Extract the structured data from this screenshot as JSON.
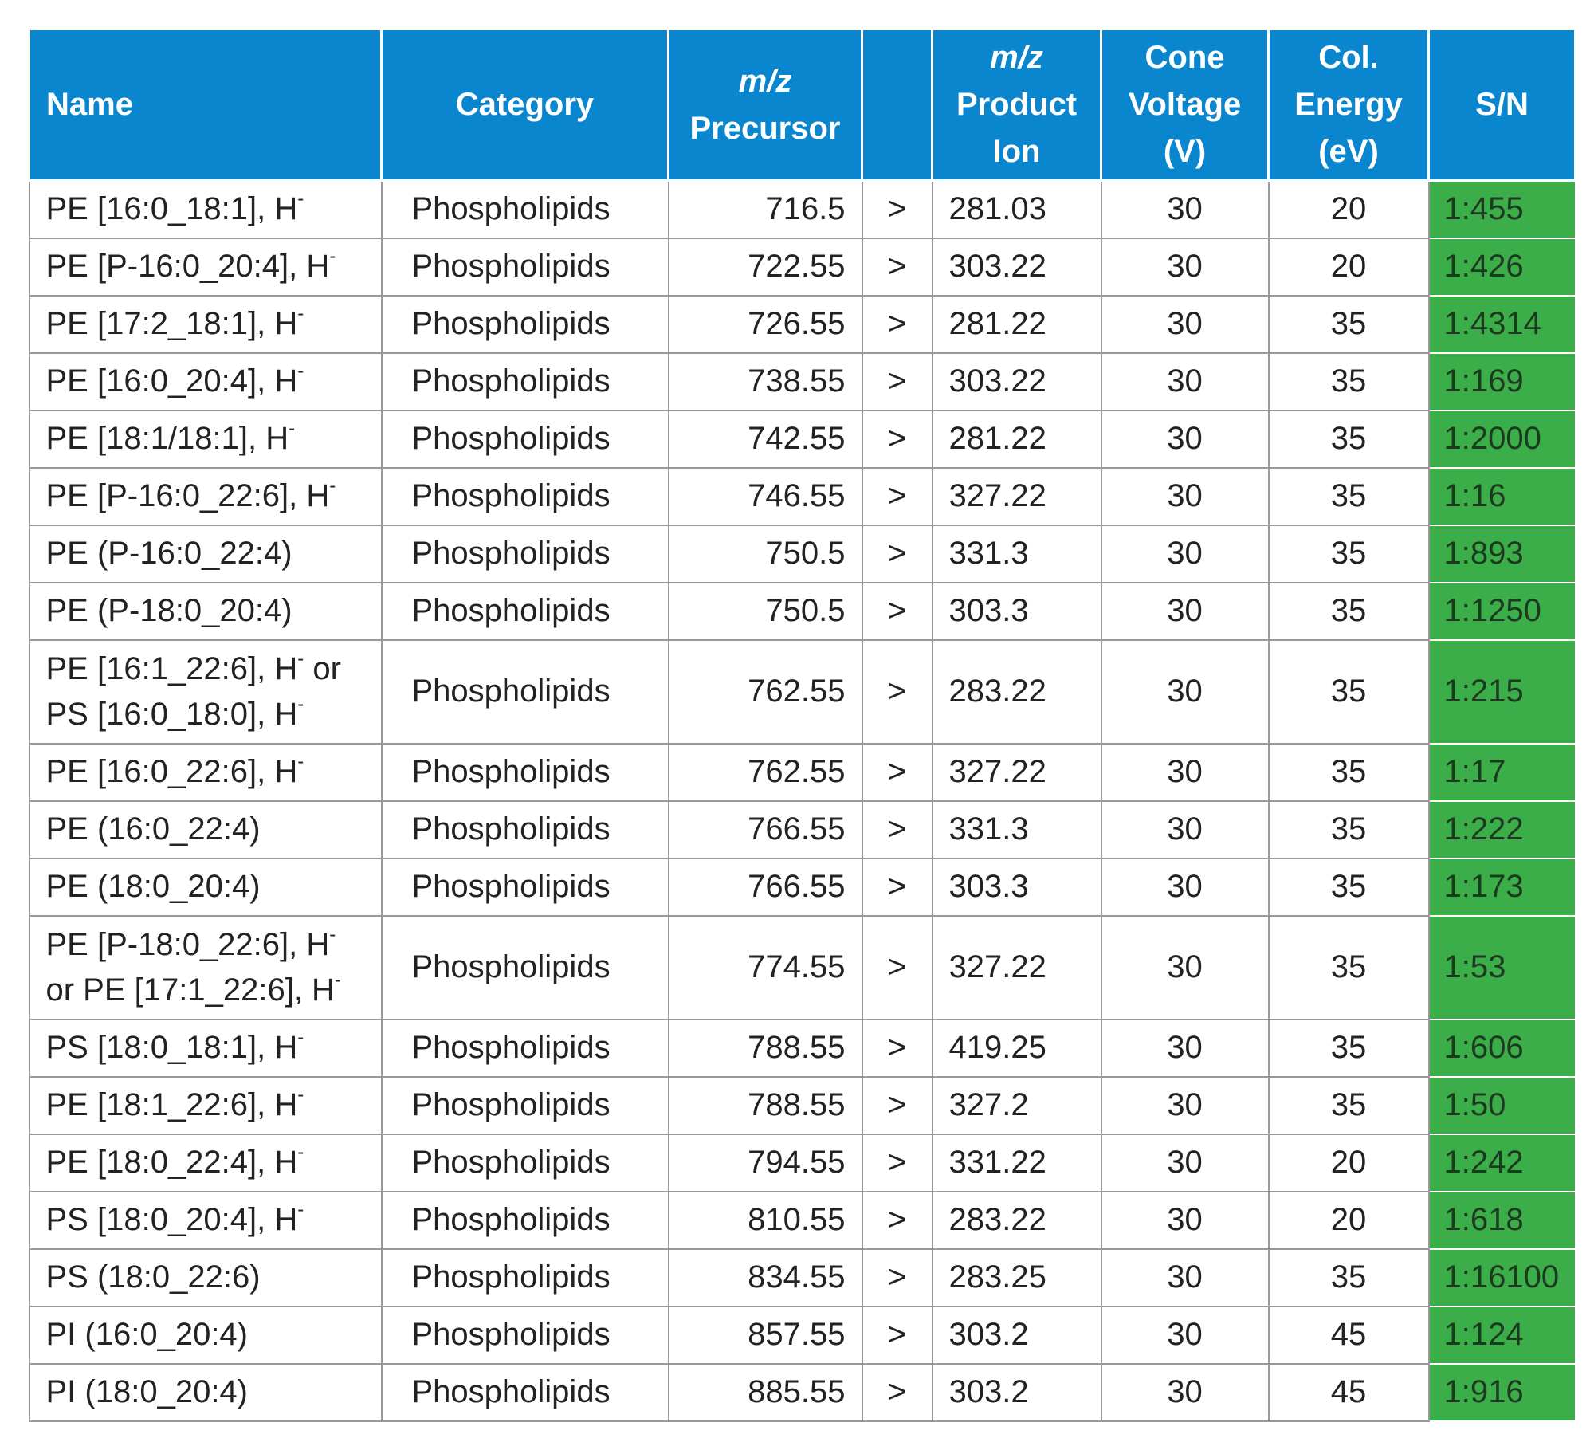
{
  "header": {
    "name": "Name",
    "category": "Category",
    "precursor_mz": "m/z",
    "precursor_label": "Precursor",
    "arrow": "",
    "product_mz": "m/z",
    "product_label_1": "Product",
    "product_label_2": "Ion",
    "cone_1": "Cone",
    "cone_2": "Voltage",
    "cone_3": "(V)",
    "col_1": "Col.",
    "col_2": "Energy",
    "col_3": "(eV)",
    "sn": "S/N"
  },
  "superscript": "-",
  "rows": [
    {
      "name_parts": [
        "PE [16:0_18:1], H",
        "-"
      ],
      "category": "Phospholipids",
      "precursor": "716.5",
      "arrow": ">",
      "product": "281.03",
      "cone": "30",
      "col": "20",
      "sn": "1:455"
    },
    {
      "name_parts": [
        "PE [P-16:0_20:4], H",
        "-"
      ],
      "category": "Phospholipids",
      "precursor": "722.55",
      "arrow": ">",
      "product": "303.22",
      "cone": "30",
      "col": "20",
      "sn": "1:426"
    },
    {
      "name_parts": [
        "PE [17:2_18:1], H",
        "-"
      ],
      "category": "Phospholipids",
      "precursor": "726.55",
      "arrow": ">",
      "product": "281.22",
      "cone": "30",
      "col": "35",
      "sn": "1:4314"
    },
    {
      "name_parts": [
        "PE [16:0_20:4], H",
        "-"
      ],
      "category": "Phospholipids",
      "precursor": "738.55",
      "arrow": ">",
      "product": "303.22",
      "cone": "30",
      "col": "35",
      "sn": "1:169"
    },
    {
      "name_parts": [
        "PE [18:1/18:1], H",
        "-"
      ],
      "category": "Phospholipids",
      "precursor": "742.55",
      "arrow": ">",
      "product": "281.22",
      "cone": "30",
      "col": "35",
      "sn": "1:2000"
    },
    {
      "name_parts": [
        "PE [P-16:0_22:6], H",
        "-"
      ],
      "category": "Phospholipids",
      "precursor": "746.55",
      "arrow": ">",
      "product": "327.22",
      "cone": "30",
      "col": "35",
      "sn": "1:16"
    },
    {
      "name_parts": [
        "PE (P-16:0_22:4)"
      ],
      "category": "Phospholipids",
      "precursor": "750.5",
      "arrow": ">",
      "product": "331.3",
      "cone": "30",
      "col": "35",
      "sn": "1:893"
    },
    {
      "name_parts": [
        "PE (P-18:0_20:4)"
      ],
      "category": "Phospholipids",
      "precursor": "750.5",
      "arrow": ">",
      "product": "303.3",
      "cone": "30",
      "col": "35",
      "sn": "1:1250"
    },
    {
      "name_parts": [
        "PE [16:1_22:6], H",
        "-",
        " or PS [16:0_18:0], H",
        "-"
      ],
      "category": "Phospholipids",
      "precursor": "762.55",
      "arrow": ">",
      "product": "283.22",
      "cone": "30",
      "col": "35",
      "sn": "1:215",
      "tall": true
    },
    {
      "name_parts": [
        "PE [16:0_22:6], H",
        "-"
      ],
      "category": "Phospholipids",
      "precursor": "762.55",
      "arrow": ">",
      "product": "327.22",
      "cone": "30",
      "col": "35",
      "sn": "1:17"
    },
    {
      "name_parts": [
        "PE (16:0_22:4)"
      ],
      "category": "Phospholipids",
      "precursor": "766.55",
      "arrow": ">",
      "product": "331.3",
      "cone": "30",
      "col": "35",
      "sn": "1:222"
    },
    {
      "name_parts": [
        "PE (18:0_20:4)"
      ],
      "category": "Phospholipids",
      "precursor": "766.55",
      "arrow": ">",
      "product": "303.3",
      "cone": "30",
      "col": "35",
      "sn": "1:173"
    },
    {
      "name_parts": [
        "PE [P-18:0_22:6], H",
        "-",
        " or PE [17:1_22:6], H",
        "-"
      ],
      "category": "Phospholipids",
      "precursor": "774.55",
      "arrow": ">",
      "product": "327.22",
      "cone": "30",
      "col": "35",
      "sn": "1:53",
      "tall": true
    },
    {
      "name_parts": [
        "PS [18:0_18:1], H",
        "-"
      ],
      "category": "Phospholipids",
      "precursor": "788.55",
      "arrow": ">",
      "product": "419.25",
      "cone": "30",
      "col": "35",
      "sn": "1:606"
    },
    {
      "name_parts": [
        "PE [18:1_22:6], H",
        "-"
      ],
      "category": "Phospholipids",
      "precursor": "788.55",
      "arrow": ">",
      "product": "327.2",
      "cone": "30",
      "col": "35",
      "sn": "1:50"
    },
    {
      "name_parts": [
        "PE [18:0_22:4], H",
        "-"
      ],
      "category": "Phospholipids",
      "precursor": "794.55",
      "arrow": ">",
      "product": "331.22",
      "cone": "30",
      "col": "20",
      "sn": "1:242"
    },
    {
      "name_parts": [
        "PS [18:0_20:4], H",
        "-"
      ],
      "category": "Phospholipids",
      "precursor": "810.55",
      "arrow": ">",
      "product": "283.22",
      "cone": "30",
      "col": "20",
      "sn": "1:618"
    },
    {
      "name_parts": [
        "PS (18:0_22:6)"
      ],
      "category": "Phospholipids",
      "precursor": "834.55",
      "arrow": ">",
      "product": "283.25",
      "cone": "30",
      "col": "35",
      "sn": "1:16100"
    },
    {
      "name_parts": [
        "PI (16:0_20:4)"
      ],
      "category": "Phospholipids",
      "precursor": "857.55",
      "arrow": ">",
      "product": "303.2",
      "cone": "30",
      "col": "45",
      "sn": "1:124"
    },
    {
      "name_parts": [
        "PI (18:0_20:4)"
      ],
      "category": "Phospholipids",
      "precursor": "885.55",
      "arrow": ">",
      "product": "303.2",
      "cone": "30",
      "col": "45",
      "sn": "1:916"
    }
  ],
  "colors": {
    "header_bg": "#0a86cf",
    "sn_bg": "#3cae49",
    "border": "#9a9a9a"
  }
}
